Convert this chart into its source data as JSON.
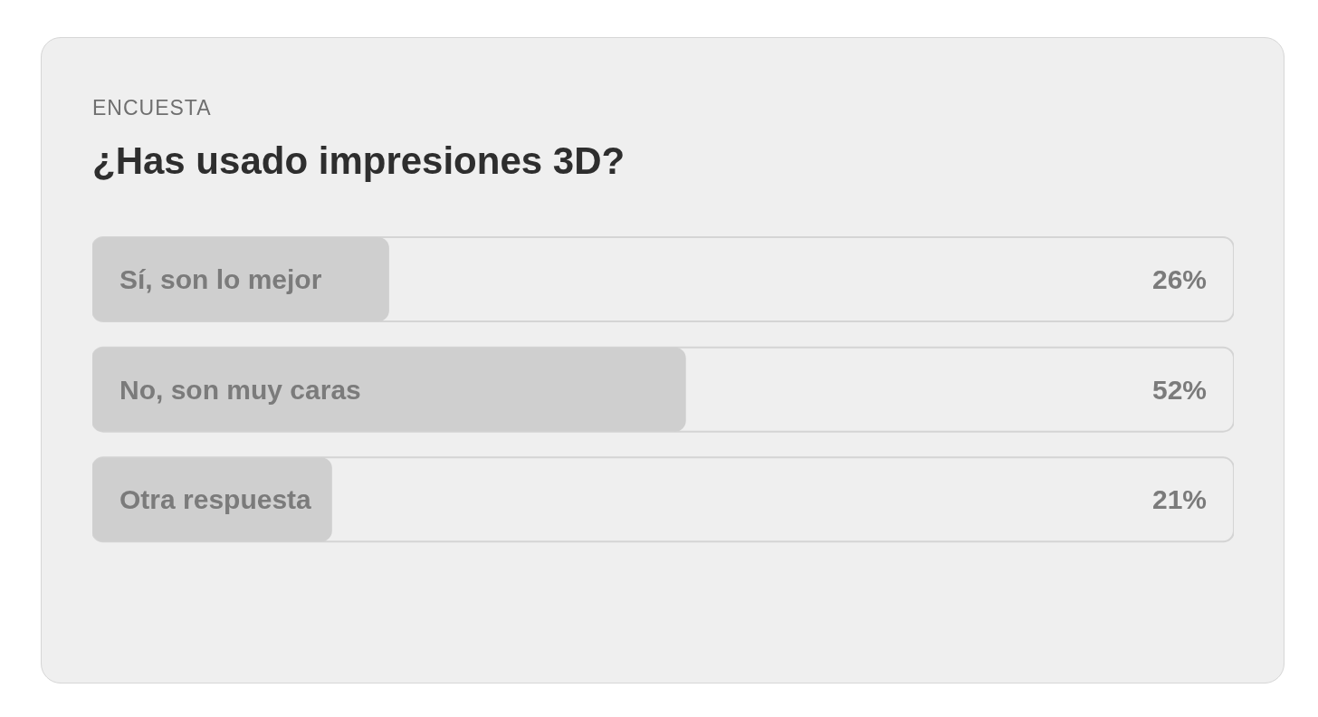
{
  "chart_data": {
    "type": "bar",
    "subtitle": "ENCUESTA",
    "title": "¿Has usado impresiones 3D?",
    "orientation": "horizontal",
    "categories": [
      "Sí, son lo mejor",
      "No, son muy caras",
      "Otra respuesta"
    ],
    "values": [
      26,
      52,
      21
    ],
    "value_labels": [
      "26%",
      "52%",
      "21%"
    ],
    "color": "#cfcfcf",
    "xlim": [
      0,
      100
    ],
    "tick_labels": false
  }
}
